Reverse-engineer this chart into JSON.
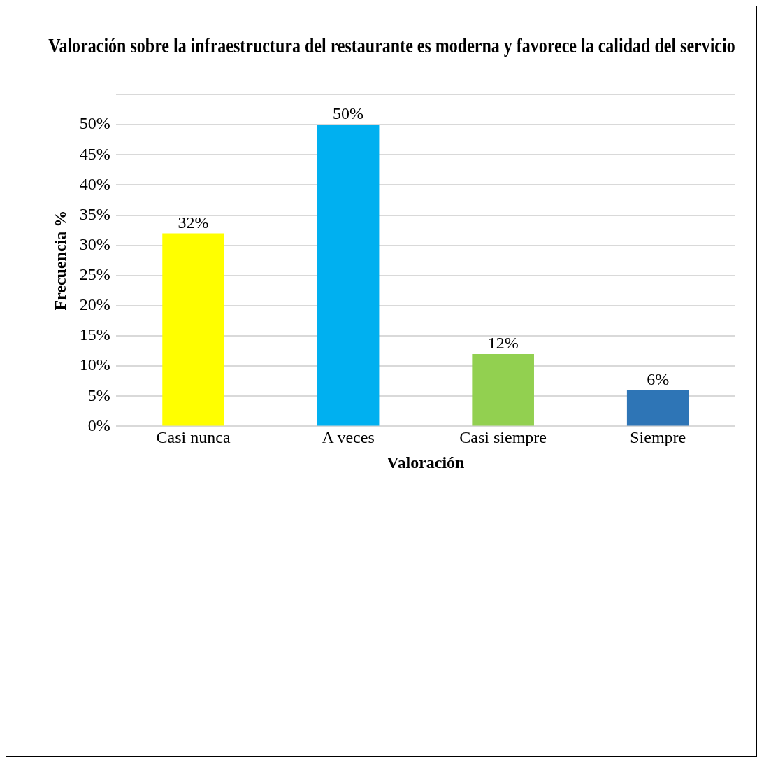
{
  "chart_data": {
    "type": "bar",
    "title": "Valoración sobre la infraestructura del restaurante es moderna y favorece la calidad del servicio",
    "xlabel": "Valoración",
    "ylabel": "Frecuencia %",
    "categories": [
      "Casi nunca",
      "A veces",
      "Casi siempre",
      "Siempre"
    ],
    "values": [
      32,
      50,
      12,
      6
    ],
    "colors": [
      "#ffff00",
      "#00b0f0",
      "#92d050",
      "#2e75b6"
    ],
    "value_labels": [
      "32%",
      "50%",
      "12%",
      "6%"
    ],
    "ylim": [
      0,
      55
    ],
    "yticks": [
      {
        "value": 0,
        "label": "0%"
      },
      {
        "value": 5,
        "label": "5%"
      },
      {
        "value": 10,
        "label": "10%"
      },
      {
        "value": 15,
        "label": "15%"
      },
      {
        "value": 20,
        "label": "20%"
      },
      {
        "value": 25,
        "label": "25%"
      },
      {
        "value": 30,
        "label": "30%"
      },
      {
        "value": 35,
        "label": "35%"
      },
      {
        "value": 40,
        "label": "40%"
      },
      {
        "value": 45,
        "label": "45%"
      },
      {
        "value": 50,
        "label": "50%"
      },
      {
        "value": 55,
        "label": null
      }
    ],
    "grid": "y",
    "legend": false
  }
}
